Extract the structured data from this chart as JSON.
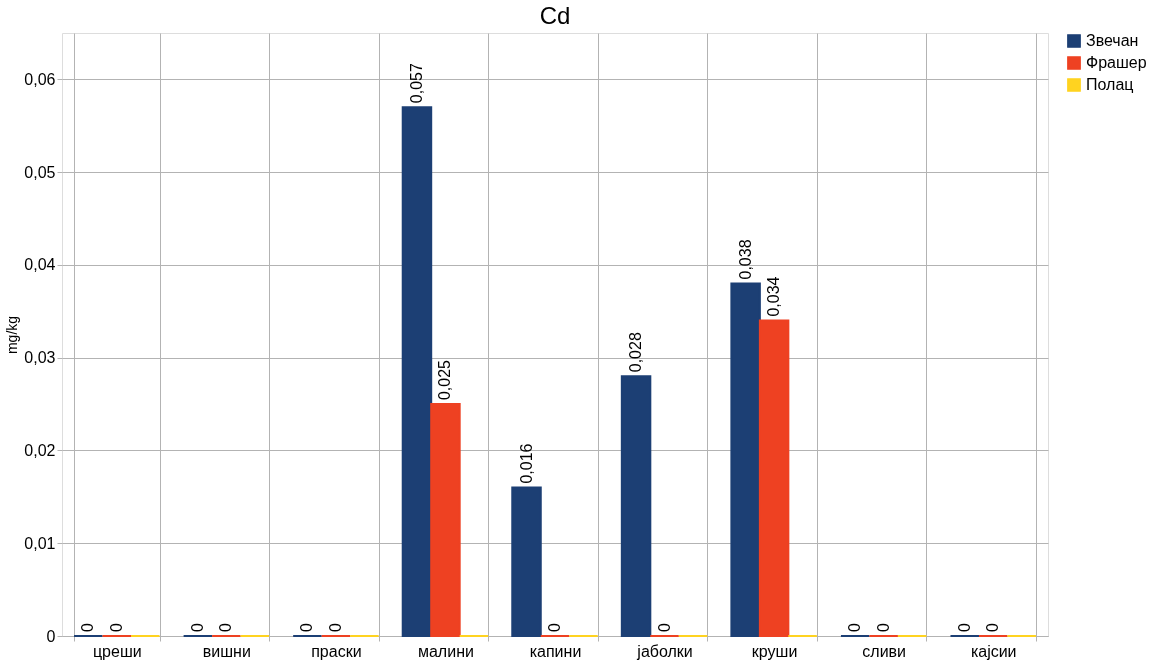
{
  "chart_data": {
    "type": "bar",
    "title": "Cd",
    "ylabel": "mg/kg",
    "categories": [
      "цреши",
      "вишни",
      "праски",
      "малини",
      "капини",
      "јаболки",
      "круши",
      "сливи",
      "кајсии"
    ],
    "series": [
      {
        "name": "Звечан",
        "color": "#1c3f74",
        "values": [
          0,
          0,
          0,
          0.057,
          0.016,
          0.028,
          0.038,
          0,
          0
        ],
        "value_labels": [
          "0",
          "0",
          "0",
          "0,057",
          "0,016",
          "0,028",
          "0,038",
          "0",
          "0"
        ]
      },
      {
        "name": "Фрашер",
        "color": "#ee4122",
        "values": [
          0,
          0,
          0,
          0.025,
          0,
          0,
          0.034,
          0,
          0
        ],
        "value_labels": [
          "0",
          "0",
          "0",
          "0,025",
          "0",
          "0",
          "0,034",
          "0",
          "0"
        ]
      },
      {
        "name": "Полац",
        "color": "#ffd320",
        "values": [
          0,
          0,
          0,
          0,
          0,
          0,
          0,
          0,
          0
        ]
      }
    ],
    "ylim": [
      0,
      0.065
    ],
    "yticks": [
      {
        "value": 0,
        "label": "0"
      },
      {
        "value": 0.01,
        "label": "0,01"
      },
      {
        "value": 0.02,
        "label": "0,02"
      },
      {
        "value": 0.03,
        "label": "0,03"
      },
      {
        "value": 0.04,
        "label": "0,04"
      },
      {
        "value": 0.05,
        "label": "0,05"
      },
      {
        "value": 0.06,
        "label": "0,06"
      }
    ],
    "grid": true,
    "legend": "right"
  }
}
